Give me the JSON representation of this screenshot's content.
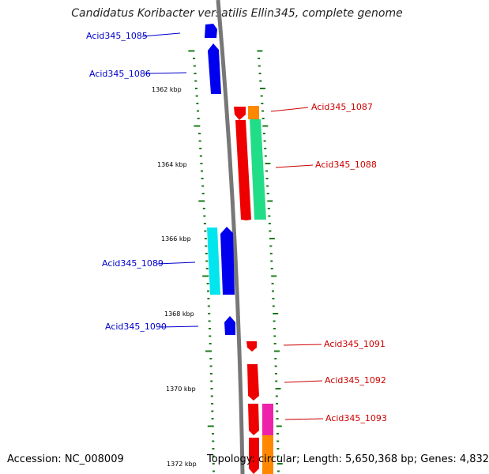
{
  "title": "Candidatus Koribacter versatilis Ellin345, complete genome",
  "footer": {
    "accession": "Accession: NC_008009",
    "summary": "Topology: circular; Length: 5,650,368 bp; Genes: 4,832"
  },
  "colors": {
    "backbone": "#777777",
    "tick": "#1a7a1a",
    "forward_label": "#0000cc",
    "reverse_label": "#cc0000"
  },
  "scale": {
    "unit": "kbp",
    "start": 1361.0,
    "end": 1372.3,
    "labels": [
      "1362 kbp",
      "1364 kbp",
      "1366 kbp",
      "1368 kbp",
      "1370 kbp",
      "1372 kbp"
    ]
  },
  "genes": [
    {
      "name": "Acid345_1085",
      "strand": "+",
      "color": "#0000ee"
    },
    {
      "name": "Acid345_1086",
      "strand": "+",
      "color": "#0000ee"
    },
    {
      "name": "Acid345_1087",
      "strand": "-",
      "color": "#ee0000"
    },
    {
      "name": "Acid345_1088",
      "strand": "-",
      "color": "#ee0000"
    },
    {
      "name": "Acid345_1089",
      "strand": "+",
      "color": "#0000ee"
    },
    {
      "name": "Acid345_1090",
      "strand": "+",
      "color": "#0000ee"
    },
    {
      "name": "Acid345_1091",
      "strand": "-",
      "color": "#ee0000"
    },
    {
      "name": "Acid345_1092",
      "strand": "-",
      "color": "#ee0000"
    },
    {
      "name": "Acid345_1093",
      "strand": "-",
      "color": "#ee0000"
    },
    {
      "name": "",
      "strand": "-",
      "color": "#ee0000"
    }
  ],
  "feature_colors": {
    "orange": "#ff8800",
    "sea_green": "#22dd88",
    "cyan": "#00e5ee",
    "magenta": "#ee22aa"
  }
}
